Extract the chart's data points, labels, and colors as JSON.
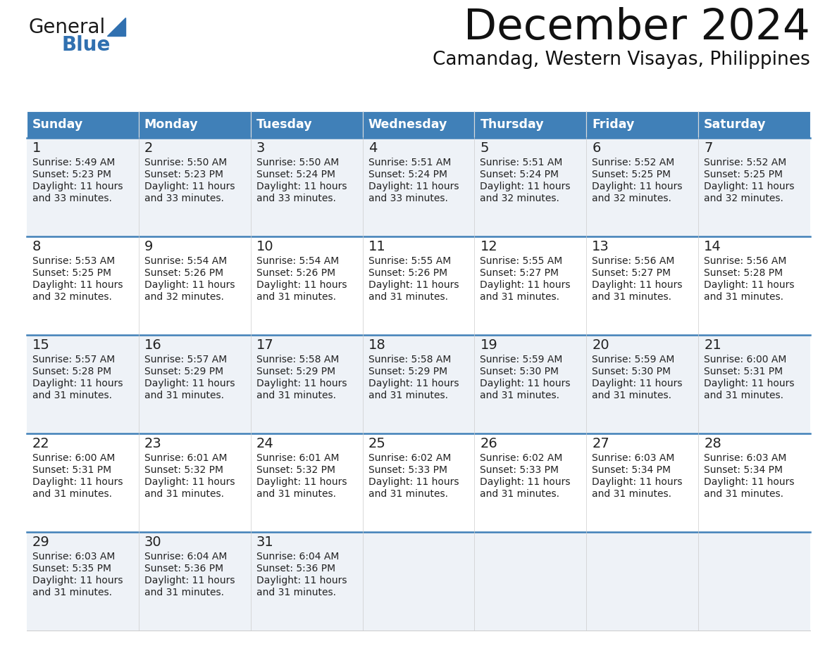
{
  "title": "December 2024",
  "subtitle": "Camandag, Western Visayas, Philippines",
  "header_color": "#4080B8",
  "header_text_color": "#FFFFFF",
  "cell_bg_even": "#EEF2F7",
  "cell_bg_odd": "#FFFFFF",
  "border_color": "#4080B8",
  "grid_color": "#CCCCCC",
  "text_color": "#222222",
  "day_names": [
    "Sunday",
    "Monday",
    "Tuesday",
    "Wednesday",
    "Thursday",
    "Friday",
    "Saturday"
  ],
  "days": [
    {
      "day": 1,
      "col": 0,
      "row": 0,
      "sunrise": "5:49 AM",
      "sunset": "5:23 PM",
      "daylight_min": "33"
    },
    {
      "day": 2,
      "col": 1,
      "row": 0,
      "sunrise": "5:50 AM",
      "sunset": "5:23 PM",
      "daylight_min": "33"
    },
    {
      "day": 3,
      "col": 2,
      "row": 0,
      "sunrise": "5:50 AM",
      "sunset": "5:24 PM",
      "daylight_min": "33"
    },
    {
      "day": 4,
      "col": 3,
      "row": 0,
      "sunrise": "5:51 AM",
      "sunset": "5:24 PM",
      "daylight_min": "33"
    },
    {
      "day": 5,
      "col": 4,
      "row": 0,
      "sunrise": "5:51 AM",
      "sunset": "5:24 PM",
      "daylight_min": "32"
    },
    {
      "day": 6,
      "col": 5,
      "row": 0,
      "sunrise": "5:52 AM",
      "sunset": "5:25 PM",
      "daylight_min": "32"
    },
    {
      "day": 7,
      "col": 6,
      "row": 0,
      "sunrise": "5:52 AM",
      "sunset": "5:25 PM",
      "daylight_min": "32"
    },
    {
      "day": 8,
      "col": 0,
      "row": 1,
      "sunrise": "5:53 AM",
      "sunset": "5:25 PM",
      "daylight_min": "32"
    },
    {
      "day": 9,
      "col": 1,
      "row": 1,
      "sunrise": "5:54 AM",
      "sunset": "5:26 PM",
      "daylight_min": "32"
    },
    {
      "day": 10,
      "col": 2,
      "row": 1,
      "sunrise": "5:54 AM",
      "sunset": "5:26 PM",
      "daylight_min": "31"
    },
    {
      "day": 11,
      "col": 3,
      "row": 1,
      "sunrise": "5:55 AM",
      "sunset": "5:26 PM",
      "daylight_min": "31"
    },
    {
      "day": 12,
      "col": 4,
      "row": 1,
      "sunrise": "5:55 AM",
      "sunset": "5:27 PM",
      "daylight_min": "31"
    },
    {
      "day": 13,
      "col": 5,
      "row": 1,
      "sunrise": "5:56 AM",
      "sunset": "5:27 PM",
      "daylight_min": "31"
    },
    {
      "day": 14,
      "col": 6,
      "row": 1,
      "sunrise": "5:56 AM",
      "sunset": "5:28 PM",
      "daylight_min": "31"
    },
    {
      "day": 15,
      "col": 0,
      "row": 2,
      "sunrise": "5:57 AM",
      "sunset": "5:28 PM",
      "daylight_min": "31"
    },
    {
      "day": 16,
      "col": 1,
      "row": 2,
      "sunrise": "5:57 AM",
      "sunset": "5:29 PM",
      "daylight_min": "31"
    },
    {
      "day": 17,
      "col": 2,
      "row": 2,
      "sunrise": "5:58 AM",
      "sunset": "5:29 PM",
      "daylight_min": "31"
    },
    {
      "day": 18,
      "col": 3,
      "row": 2,
      "sunrise": "5:58 AM",
      "sunset": "5:29 PM",
      "daylight_min": "31"
    },
    {
      "day": 19,
      "col": 4,
      "row": 2,
      "sunrise": "5:59 AM",
      "sunset": "5:30 PM",
      "daylight_min": "31"
    },
    {
      "day": 20,
      "col": 5,
      "row": 2,
      "sunrise": "5:59 AM",
      "sunset": "5:30 PM",
      "daylight_min": "31"
    },
    {
      "day": 21,
      "col": 6,
      "row": 2,
      "sunrise": "6:00 AM",
      "sunset": "5:31 PM",
      "daylight_min": "31"
    },
    {
      "day": 22,
      "col": 0,
      "row": 3,
      "sunrise": "6:00 AM",
      "sunset": "5:31 PM",
      "daylight_min": "31"
    },
    {
      "day": 23,
      "col": 1,
      "row": 3,
      "sunrise": "6:01 AM",
      "sunset": "5:32 PM",
      "daylight_min": "31"
    },
    {
      "day": 24,
      "col": 2,
      "row": 3,
      "sunrise": "6:01 AM",
      "sunset": "5:32 PM",
      "daylight_min": "31"
    },
    {
      "day": 25,
      "col": 3,
      "row": 3,
      "sunrise": "6:02 AM",
      "sunset": "5:33 PM",
      "daylight_min": "31"
    },
    {
      "day": 26,
      "col": 4,
      "row": 3,
      "sunrise": "6:02 AM",
      "sunset": "5:33 PM",
      "daylight_min": "31"
    },
    {
      "day": 27,
      "col": 5,
      "row": 3,
      "sunrise": "6:03 AM",
      "sunset": "5:34 PM",
      "daylight_min": "31"
    },
    {
      "day": 28,
      "col": 6,
      "row": 3,
      "sunrise": "6:03 AM",
      "sunset": "5:34 PM",
      "daylight_min": "31"
    },
    {
      "day": 29,
      "col": 0,
      "row": 4,
      "sunrise": "6:03 AM",
      "sunset": "5:35 PM",
      "daylight_min": "31"
    },
    {
      "day": 30,
      "col": 1,
      "row": 4,
      "sunrise": "6:04 AM",
      "sunset": "5:36 PM",
      "daylight_min": "31"
    },
    {
      "day": 31,
      "col": 2,
      "row": 4,
      "sunrise": "6:04 AM",
      "sunset": "5:36 PM",
      "daylight_min": "31"
    }
  ],
  "num_rows": 5,
  "logo_color_general": "#1a1a1a",
  "logo_color_blue": "#3070B0",
  "logo_triangle_color": "#3070B0"
}
